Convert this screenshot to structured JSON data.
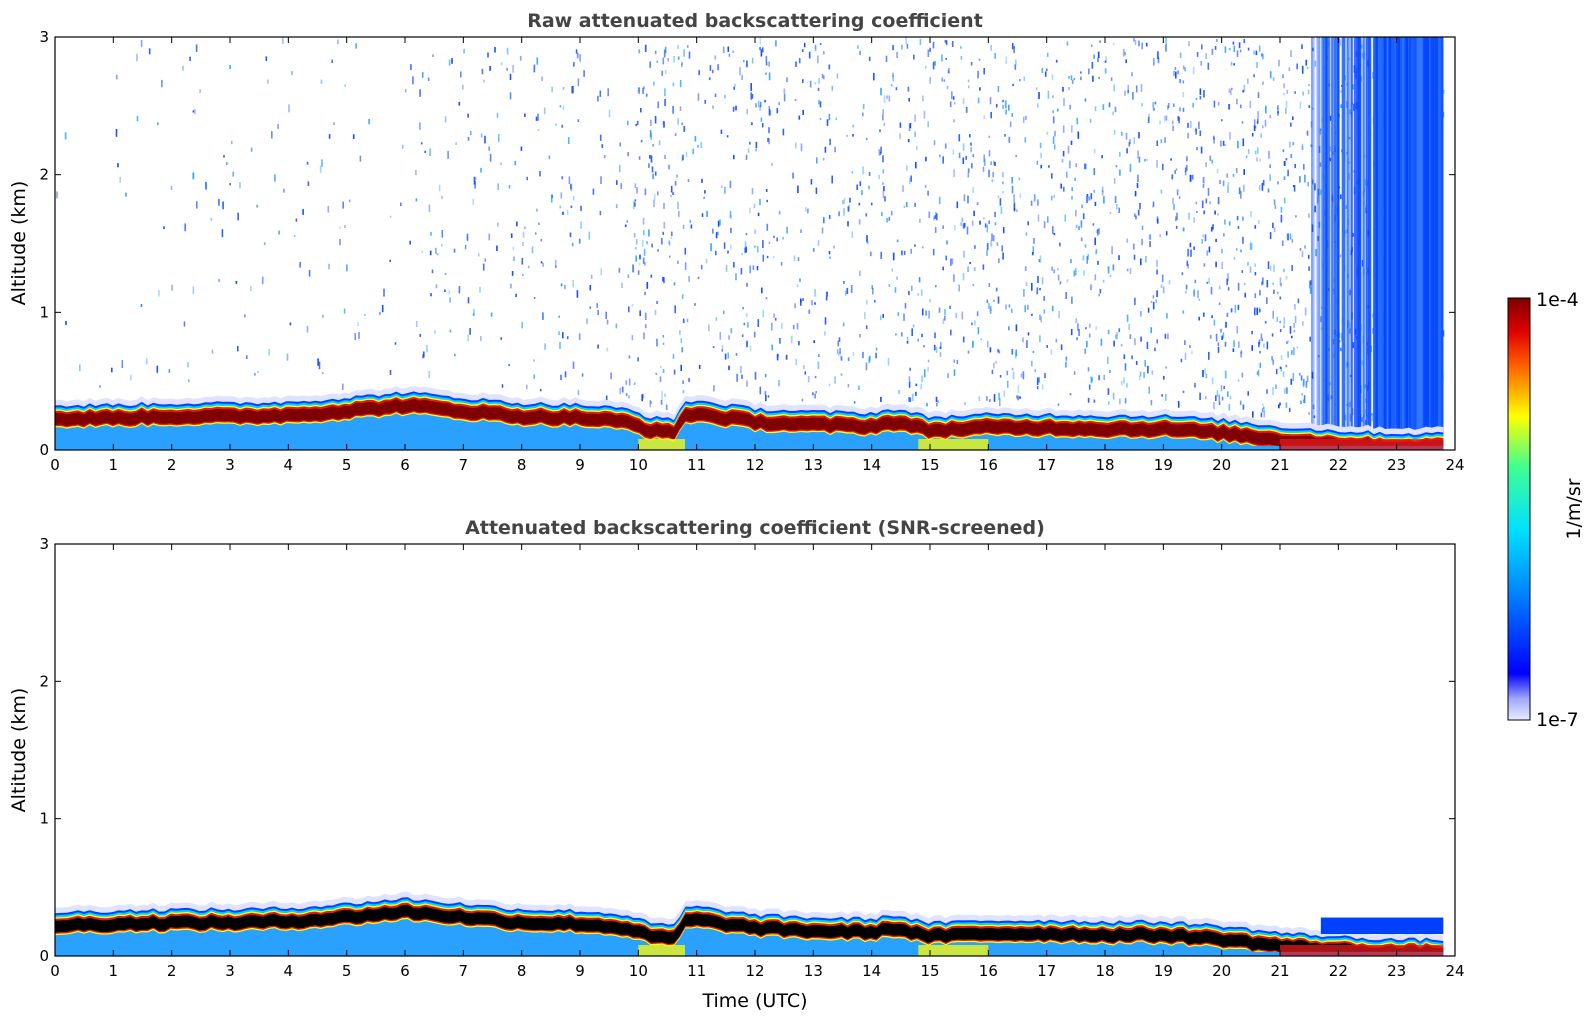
{
  "chart_data": [
    {
      "type": "heatmap",
      "title": "Raw attenuated backscattering coefficient",
      "xlabel": "",
      "ylabel": "Altitude (km)",
      "xlim": [
        0,
        24
      ],
      "ylim": [
        0,
        3
      ],
      "x_ticks": [
        "0",
        "1",
        "2",
        "3",
        "4",
        "5",
        "6",
        "7",
        "8",
        "9",
        "10",
        "11",
        "12",
        "13",
        "14",
        "15",
        "16",
        "17",
        "18",
        "19",
        "20",
        "21",
        "22",
        "23",
        "24"
      ],
      "y_ticks": [
        "0",
        "1",
        "2",
        "3"
      ],
      "layer_top_km": [
        [
          0,
          0.32
        ],
        [
          1,
          0.33
        ],
        [
          2,
          0.34
        ],
        [
          3,
          0.34
        ],
        [
          4,
          0.35
        ],
        [
          5,
          0.38
        ],
        [
          6,
          0.42
        ],
        [
          7,
          0.38
        ],
        [
          8,
          0.34
        ],
        [
          9,
          0.33
        ],
        [
          9.8,
          0.3
        ],
        [
          10.2,
          0.24
        ],
        [
          10.6,
          0.22
        ],
        [
          10.8,
          0.35
        ],
        [
          11,
          0.36
        ],
        [
          12,
          0.3
        ],
        [
          13,
          0.28
        ],
        [
          14,
          0.27
        ],
        [
          14.4,
          0.3
        ],
        [
          15,
          0.24
        ],
        [
          16,
          0.26
        ],
        [
          17,
          0.26
        ],
        [
          18,
          0.25
        ],
        [
          19,
          0.25
        ],
        [
          20,
          0.22
        ],
        [
          21,
          0.17
        ],
        [
          22,
          0.14
        ],
        [
          23,
          0.12
        ],
        [
          23.8,
          0.12
        ]
      ],
      "noise": "strong above the boundary layer, highest after 21.5 UTC",
      "grid": false,
      "colorbar": {
        "label": "1/m/sr",
        "min_label": "1e-7",
        "max_label": "1e-4",
        "scale": "log",
        "colormap": "jet"
      }
    },
    {
      "type": "heatmap",
      "title": "Attenuated backscattering coefficient (SNR-screened)",
      "xlabel": "Time (UTC)",
      "ylabel": "Altitude (km)",
      "xlim": [
        0,
        24
      ],
      "ylim": [
        0,
        3
      ],
      "x_ticks": [
        "0",
        "1",
        "2",
        "3",
        "4",
        "5",
        "6",
        "7",
        "8",
        "9",
        "10",
        "11",
        "12",
        "13",
        "14",
        "15",
        "16",
        "17",
        "18",
        "19",
        "20",
        "21",
        "22",
        "23",
        "24"
      ],
      "y_ticks": [
        "0",
        "1",
        "2",
        "3"
      ],
      "layer_top_km": [
        [
          0,
          0.32
        ],
        [
          1,
          0.33
        ],
        [
          2,
          0.34
        ],
        [
          3,
          0.34
        ],
        [
          4,
          0.35
        ],
        [
          5,
          0.38
        ],
        [
          6,
          0.42
        ],
        [
          7,
          0.38
        ],
        [
          8,
          0.34
        ],
        [
          9,
          0.33
        ],
        [
          9.8,
          0.3
        ],
        [
          10.2,
          0.24
        ],
        [
          10.6,
          0.22
        ],
        [
          10.8,
          0.35
        ],
        [
          11,
          0.36
        ],
        [
          12,
          0.3
        ],
        [
          13,
          0.28
        ],
        [
          14,
          0.27
        ],
        [
          14.4,
          0.3
        ],
        [
          15,
          0.24
        ],
        [
          16,
          0.26
        ],
        [
          17,
          0.26
        ],
        [
          18,
          0.25
        ],
        [
          19,
          0.25
        ],
        [
          20,
          0.22
        ],
        [
          21,
          0.17
        ],
        [
          22,
          0.14
        ],
        [
          23,
          0.12
        ],
        [
          23.8,
          0.12
        ]
      ],
      "screened_patch_km": {
        "x_start": 21.7,
        "x_end": 23.8,
        "top": 0.28
      },
      "grid": false,
      "colorbar": {
        "label": "1/m/sr",
        "min_label": "1e-7",
        "max_label": "1e-4",
        "scale": "log",
        "colormap": "jet"
      }
    }
  ],
  "colors": {
    "dark_red": "#7f0000",
    "red": "#e31a1c",
    "yellow": "#ffff00",
    "cyan": "#00d0ff",
    "sky_blue": "#2aa0ff",
    "blue": "#0040ff",
    "black": "#000000",
    "title_gray": "#444444"
  }
}
